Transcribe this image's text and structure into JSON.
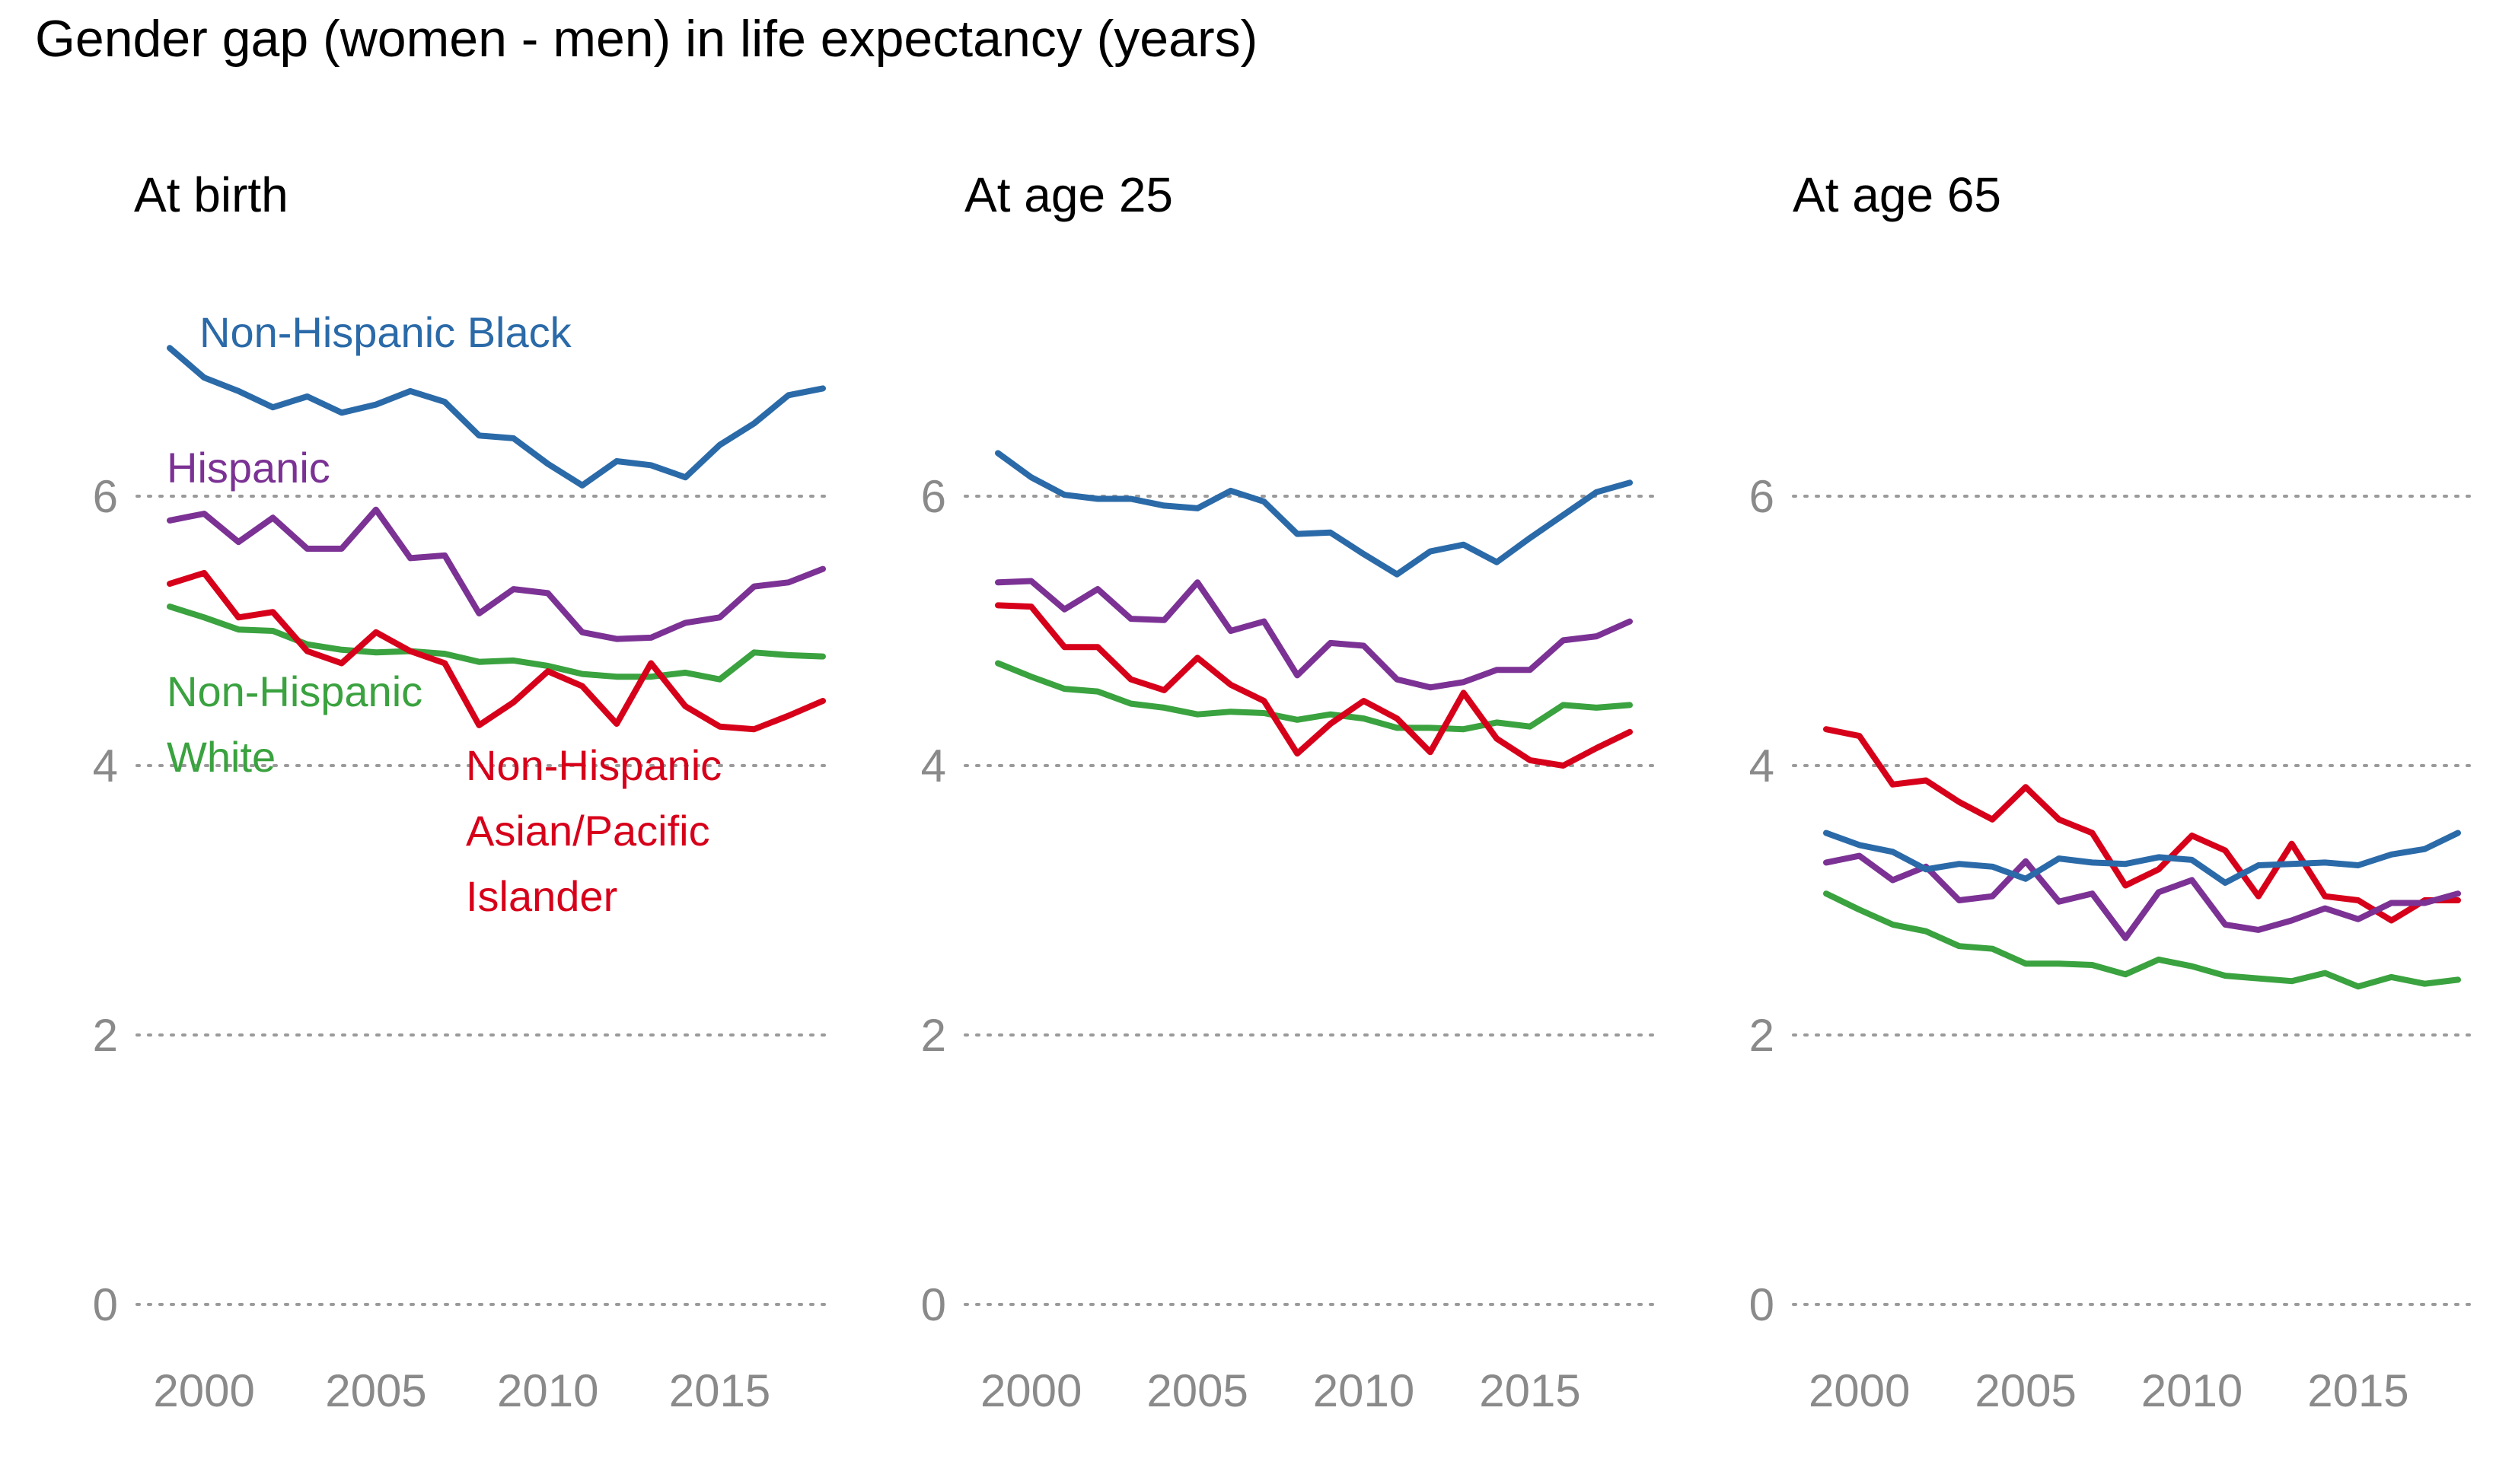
{
  "title": "Gender gap (women - men) in life expectancy (years)",
  "colors": {
    "black": "#2b6aa8",
    "hispanic": "#7b3294",
    "white": "#3aa23f",
    "asian": "#d7001a",
    "grid": "#9a9a9a",
    "tick": "#8a8a8a"
  },
  "labels": {
    "black": "Non-Hispanic Black",
    "hispanic": "Hispanic",
    "white": [
      "Non-Hispanic",
      "White"
    ],
    "asian": [
      "Non-Hispanic",
      "Asian/Pacific",
      "Islander"
    ]
  },
  "chart_data": [
    {
      "type": "line",
      "title": "At birth",
      "x": [
        1999,
        2000,
        2001,
        2002,
        2003,
        2004,
        2005,
        2006,
        2007,
        2008,
        2009,
        2010,
        2011,
        2012,
        2013,
        2014,
        2015,
        2016,
        2017,
        2018
      ],
      "xticks": [
        2000,
        2005,
        2010,
        2015
      ],
      "yticks": [
        0,
        2,
        4,
        6
      ],
      "ylim": [
        0,
        7.1
      ],
      "series": [
        {
          "key": "black",
          "values": [
            7.1,
            6.88,
            6.78,
            6.66,
            6.74,
            6.62,
            6.68,
            6.78,
            6.7,
            6.45,
            6.43,
            6.24,
            6.08,
            6.26,
            6.23,
            6.14,
            6.38,
            6.54,
            6.75,
            6.8
          ]
        },
        {
          "key": "hispanic",
          "values": [
            5.82,
            5.87,
            5.66,
            5.84,
            5.61,
            5.61,
            5.9,
            5.54,
            5.56,
            5.13,
            5.31,
            5.28,
            4.99,
            4.94,
            4.95,
            5.06,
            5.1,
            5.33,
            5.36,
            5.46
          ]
        },
        {
          "key": "white",
          "values": [
            5.18,
            5.1,
            5.01,
            5.0,
            4.9,
            4.86,
            4.84,
            4.85,
            4.83,
            4.77,
            4.78,
            4.74,
            4.68,
            4.66,
            4.66,
            4.69,
            4.64,
            4.84,
            4.82,
            4.81
          ]
        },
        {
          "key": "asian",
          "values": [
            5.35,
            5.43,
            5.1,
            5.14,
            4.85,
            4.76,
            4.99,
            4.85,
            4.76,
            4.3,
            4.47,
            4.7,
            4.59,
            4.31,
            4.76,
            4.44,
            4.29,
            4.27,
            4.37,
            4.48
          ]
        }
      ]
    },
    {
      "type": "line",
      "title": "At age 25",
      "x": [
        1999,
        2000,
        2001,
        2002,
        2003,
        2004,
        2005,
        2006,
        2007,
        2008,
        2009,
        2010,
        2011,
        2012,
        2013,
        2014,
        2015,
        2016,
        2017,
        2018
      ],
      "xticks": [
        2000,
        2005,
        2010,
        2015
      ],
      "yticks": [
        0,
        2,
        4,
        6
      ],
      "ylim": [
        0,
        7.1
      ],
      "series": [
        {
          "key": "black",
          "values": [
            6.32,
            6.14,
            6.01,
            5.98,
            5.98,
            5.93,
            5.91,
            6.04,
            5.96,
            5.72,
            5.73,
            5.57,
            5.42,
            5.59,
            5.64,
            5.51,
            5.69,
            5.86,
            6.03,
            6.1
          ]
        },
        {
          "key": "hispanic",
          "values": [
            5.36,
            5.37,
            5.16,
            5.31,
            5.09,
            5.08,
            5.36,
            5.0,
            5.07,
            4.67,
            4.91,
            4.89,
            4.64,
            4.58,
            4.62,
            4.71,
            4.71,
            4.93,
            4.96,
            5.07
          ]
        },
        {
          "key": "white",
          "values": [
            4.76,
            4.66,
            4.57,
            4.55,
            4.46,
            4.43,
            4.38,
            4.4,
            4.39,
            4.34,
            4.38,
            4.35,
            4.28,
            4.28,
            4.27,
            4.32,
            4.29,
            4.45,
            4.43,
            4.45
          ]
        },
        {
          "key": "asian",
          "values": [
            5.19,
            5.18,
            4.88,
            4.88,
            4.64,
            4.56,
            4.8,
            4.6,
            4.48,
            4.09,
            4.31,
            4.48,
            4.35,
            4.1,
            4.54,
            4.2,
            4.04,
            4.0,
            4.13,
            4.25
          ]
        }
      ]
    },
    {
      "type": "line",
      "title": "At age 65",
      "x": [
        1999,
        2000,
        2001,
        2002,
        2003,
        2004,
        2005,
        2006,
        2007,
        2008,
        2009,
        2010,
        2011,
        2012,
        2013,
        2014,
        2015,
        2016,
        2017,
        2018
      ],
      "xticks": [
        2000,
        2005,
        2010,
        2015
      ],
      "yticks": [
        0,
        2,
        4,
        6
      ],
      "ylim": [
        0,
        7.1
      ],
      "series": [
        {
          "key": "black",
          "values": [
            3.5,
            3.41,
            3.36,
            3.23,
            3.27,
            3.25,
            3.16,
            3.31,
            3.28,
            3.27,
            3.32,
            3.3,
            3.13,
            3.26,
            3.27,
            3.28,
            3.26,
            3.34,
            3.38,
            3.5
          ]
        },
        {
          "key": "hispanic",
          "values": [
            3.28,
            3.33,
            3.15,
            3.25,
            3.0,
            3.03,
            3.29,
            2.99,
            3.05,
            2.72,
            3.06,
            3.15,
            2.82,
            2.78,
            2.85,
            2.94,
            2.86,
            2.98,
            2.98,
            3.05
          ]
        },
        {
          "key": "white",
          "values": [
            3.05,
            2.93,
            2.82,
            2.77,
            2.66,
            2.64,
            2.53,
            2.53,
            2.52,
            2.45,
            2.56,
            2.51,
            2.44,
            2.42,
            2.4,
            2.46,
            2.36,
            2.43,
            2.38,
            2.41
          ]
        },
        {
          "key": "asian",
          "values": [
            4.27,
            4.22,
            3.86,
            3.89,
            3.73,
            3.6,
            3.84,
            3.6,
            3.5,
            3.11,
            3.23,
            3.48,
            3.37,
            3.03,
            3.42,
            3.03,
            3.0,
            2.85,
            3.0,
            3.0
          ]
        }
      ]
    }
  ]
}
